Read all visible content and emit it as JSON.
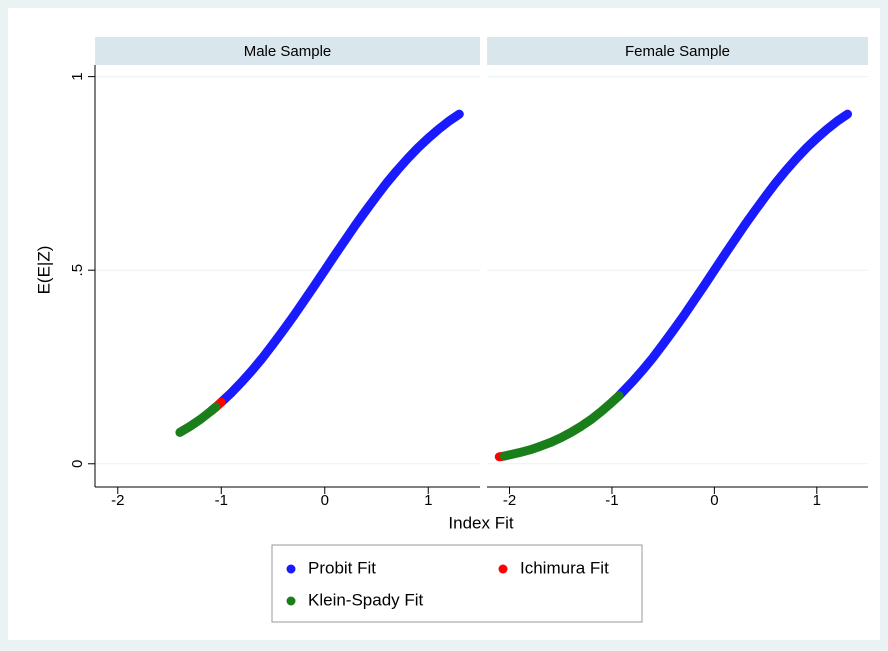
{
  "chart_data": [
    {
      "type": "line",
      "title": "Male Sample",
      "ylabel": "E(E|Z)",
      "xlabel": "Index Fit",
      "xlim": [
        -2.22,
        1.5
      ],
      "xticks": [
        -2,
        -1,
        0,
        1
      ],
      "ylim": [
        -0.06,
        1.03
      ],
      "yticks": [
        0,
        {
          "value": 0.5,
          "label": ".5"
        },
        1
      ],
      "grid": true,
      "series": [
        {
          "name": "Probit Fit",
          "color": "#1a1aff",
          "x": [
            -1.0,
            -0.9,
            -0.8,
            -0.7,
            -0.6,
            -0.5,
            -0.4,
            -0.3,
            -0.2,
            -0.1,
            0,
            0.1,
            0.2,
            0.3,
            0.4,
            0.5,
            0.6,
            0.7,
            0.8,
            0.9,
            1.0,
            1.1,
            1.2,
            1.3
          ],
          "values": [
            0.159,
            0.184,
            0.212,
            0.242,
            0.274,
            0.309,
            0.345,
            0.382,
            0.421,
            0.46,
            0.5,
            0.54,
            0.579,
            0.618,
            0.655,
            0.691,
            0.726,
            0.758,
            0.788,
            0.816,
            0.841,
            0.864,
            0.885,
            0.903
          ]
        },
        {
          "name": "Ichimura Fit",
          "color": "#ff0000",
          "x": [
            -1.1,
            -1.05,
            -1.0
          ],
          "values": [
            0.136,
            0.147,
            0.159
          ]
        },
        {
          "name": "Klein-Spady Fit",
          "color": "#1a7f1a",
          "x": [
            -1.4,
            -1.3,
            -1.2,
            -1.1,
            -1.05
          ],
          "values": [
            0.081,
            0.097,
            0.115,
            0.136,
            0.147
          ]
        }
      ]
    },
    {
      "type": "line",
      "title": "Female Sample",
      "xlim": [
        -2.22,
        1.5
      ],
      "xticks": [
        -2,
        -1,
        0,
        1
      ],
      "ylim": [
        -0.06,
        1.03
      ],
      "yticks": [
        0,
        0.5,
        1
      ],
      "grid": true,
      "series": [
        {
          "color": "#1a1aff",
          "x": [
            -0.93,
            -0.8,
            -0.7,
            -0.6,
            -0.5,
            -0.4,
            -0.3,
            -0.2,
            -0.1,
            0,
            0.1,
            0.2,
            0.3,
            0.4,
            0.5,
            0.6,
            0.7,
            0.8,
            0.9,
            1.0,
            1.1,
            1.2,
            1.3
          ],
          "values": [
            0.176,
            0.212,
            0.242,
            0.274,
            0.309,
            0.345,
            0.382,
            0.421,
            0.46,
            0.5,
            0.54,
            0.579,
            0.618,
            0.655,
            0.691,
            0.726,
            0.758,
            0.788,
            0.816,
            0.841,
            0.864,
            0.885,
            0.903
          ]
        },
        {
          "color": "#ff0000",
          "x": [
            -2.1,
            -2.05
          ],
          "values": [
            0.018,
            0.02
          ]
        },
        {
          "color": "#1a7f1a",
          "x": [
            -2.05,
            -2.0,
            -1.9,
            -1.8,
            -1.7,
            -1.6,
            -1.5,
            -1.4,
            -1.3,
            -1.2,
            -1.1,
            -1.0,
            -0.93
          ],
          "values": [
            0.02,
            0.023,
            0.029,
            0.036,
            0.045,
            0.055,
            0.067,
            0.081,
            0.097,
            0.115,
            0.136,
            0.159,
            0.176
          ]
        }
      ]
    }
  ]
}
